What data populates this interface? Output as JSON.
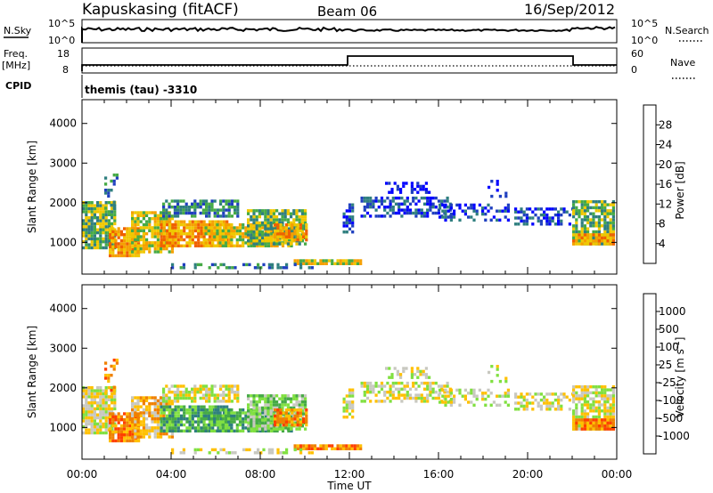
{
  "header": {
    "station": "Kapuskasing (fitACF)",
    "beam": "Beam 06",
    "date": "16/Sep/2012"
  },
  "strips": {
    "nsky_label": "N.Sky",
    "nsearch_label": "N.Search",
    "nsky_ticks": [
      "10^5",
      "10^0"
    ],
    "nsearch_ticks": [
      "10^5",
      "10^0"
    ],
    "freq_label": "Freq.",
    "freq_unit": "[MHz]",
    "freq_ticks": [
      "18",
      "8"
    ],
    "nave_label": "Nave",
    "nave_ticks": [
      "60",
      "0"
    ],
    "cpid_label": "CPID",
    "cpid_text": "themis (tau) -3310"
  },
  "chart_data": [
    {
      "type": "heatmap",
      "ylabel": "Slant Range [km]",
      "xlabel": "Time UT",
      "x_ticks": [
        "00:00",
        "04:00",
        "08:00",
        "12:00",
        "16:00",
        "20:00",
        "00:00"
      ],
      "y_ticks": [
        1000,
        2000,
        3000,
        4000
      ],
      "ylim": [
        200,
        4600
      ],
      "xlim": [
        0,
        24
      ],
      "colorbar": {
        "label": "Power [dB]",
        "ticks": [
          "4",
          "8",
          "12",
          "16",
          "20",
          "24",
          "28"
        ],
        "colors": [
          "#0000ff",
          "#1f3fbf",
          "#2f7f7f",
          "#46aa46",
          "#f0c800",
          "#f5a000",
          "#f06000",
          "#ff0000"
        ]
      }
    },
    {
      "type": "heatmap",
      "ylabel": "Slant Range [km]",
      "xlabel": "Time UT",
      "x_ticks": [
        "00:00",
        "04:00",
        "08:00",
        "12:00",
        "16:00",
        "20:00",
        "00:00"
      ],
      "y_ticks": [
        1000,
        2000,
        3000,
        4000
      ],
      "ylim": [
        200,
        4600
      ],
      "xlim": [
        0,
        24
      ],
      "colorbar": {
        "label": "Velocity [m s^-1]",
        "ticks": [
          "1000",
          "500",
          "100",
          "25",
          "-25",
          "-100",
          "-500",
          "-1000"
        ],
        "colors": [
          "#1f3fbf",
          "#2f7f7f",
          "#46aa46",
          "#80e040",
          "#c8c8c0",
          "#ffc000",
          "#f08000",
          "#ff4000",
          "#ff0000"
        ]
      }
    }
  ],
  "time_axis": {
    "ticks": [
      "00:00",
      "04:00",
      "08:00",
      "12:00",
      "16:00",
      "20:00",
      "00:00"
    ],
    "label": "Time UT"
  }
}
